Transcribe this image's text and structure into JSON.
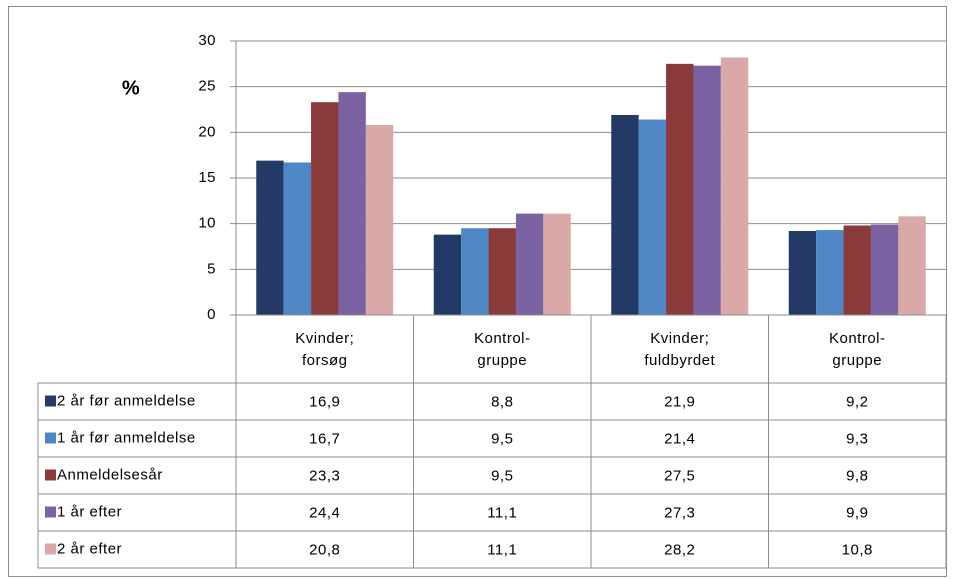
{
  "chart_data": {
    "type": "bar",
    "y_label": "%",
    "categories": [
      [
        "Kvinder;",
        "forsøg"
      ],
      [
        "Kontrol-",
        "gruppe"
      ],
      [
        "Kvinder;",
        "fuldbyrdet"
      ],
      [
        "Kontrol-",
        "gruppe"
      ]
    ],
    "ylim": [
      0,
      30
    ],
    "yticks": [
      0,
      5,
      10,
      15,
      20,
      25,
      30
    ],
    "grid": true,
    "series": [
      {
        "name": "2 år før anmeldelse",
        "color": "#243a66",
        "values": [
          16.9,
          8.8,
          21.9,
          9.2
        ],
        "value_labels": [
          "16,9",
          "8,8",
          "21,9",
          "9,2"
        ]
      },
      {
        "name": "1 år før anmeldelse",
        "color": "#4f86c6",
        "values": [
          16.7,
          9.5,
          21.4,
          9.3
        ],
        "value_labels": [
          "16,7",
          "9,5",
          "21,4",
          "9,3"
        ]
      },
      {
        "name": "Anmeldelsesår",
        "color": "#8b3a3a",
        "values": [
          23.3,
          9.5,
          27.5,
          9.8
        ],
        "value_labels": [
          "23,3",
          "9,5",
          "27,5",
          "9,8"
        ]
      },
      {
        "name": "1 år efter",
        "color": "#7a62a3",
        "values": [
          24.4,
          11.1,
          27.3,
          9.9
        ],
        "value_labels": [
          "24,4",
          "11,1",
          "27,3",
          "9,9"
        ]
      },
      {
        "name": "2 år efter",
        "color": "#dba8a8",
        "values": [
          20.8,
          11.1,
          28.2,
          10.8
        ],
        "value_labels": [
          "20,8",
          "11,1",
          "28,2",
          "10,8"
        ]
      }
    ]
  }
}
